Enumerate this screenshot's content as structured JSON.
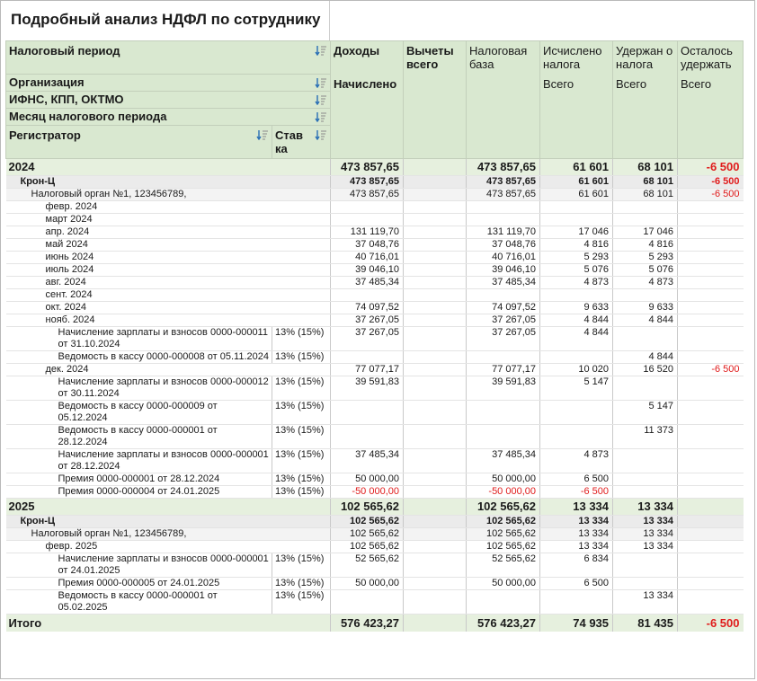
{
  "report": {
    "title": "Подробный анализ НДФЛ по сотруднику"
  },
  "header": {
    "dim1": "Налоговый период",
    "dim2": "Организация",
    "dim3": "ИФНС, КПП, ОКТМО",
    "dim4": "Месяц налогового периода",
    "dim5": "Регистратор",
    "dim6": "Став ка",
    "col_income": "Доходы",
    "col_income_sub": "Начислено",
    "col_deductions": "Вычеты всего",
    "col_taxbase": "Налоговая база",
    "col_calc": "Исчислено налога",
    "col_calc_sub": "Всего",
    "col_withheld": "Удержан о налога",
    "col_withheld_sub": "Всего",
    "col_remaining": "Осталось удержать",
    "col_remaining_sub": "Всего"
  },
  "rows": [
    {
      "level": 0,
      "label": "2024",
      "rate": "",
      "income": "473 857,65",
      "deductions": "",
      "base": "473 857,65",
      "calc": "61 601",
      "withheld": "68 101",
      "remaining": "-6 500"
    },
    {
      "level": 1,
      "label": "Крон-Ц",
      "rate": "",
      "income": "473 857,65",
      "deductions": "",
      "base": "473 857,65",
      "calc": "61 601",
      "withheld": "68 101",
      "remaining": "-6 500"
    },
    {
      "level": 2,
      "label": "Налоговый орган №1, 123456789,",
      "rate": "",
      "income": "473 857,65",
      "deductions": "",
      "base": "473 857,65",
      "calc": "61 601",
      "withheld": "68 101",
      "remaining": "-6 500"
    },
    {
      "level": 3,
      "label": "февр. 2024",
      "rate": "",
      "income": "",
      "deductions": "",
      "base": "",
      "calc": "",
      "withheld": "",
      "remaining": ""
    },
    {
      "level": 3,
      "label": "март 2024",
      "rate": "",
      "income": "",
      "deductions": "",
      "base": "",
      "calc": "",
      "withheld": "",
      "remaining": ""
    },
    {
      "level": 3,
      "label": "апр. 2024",
      "rate": "",
      "income": "131 119,70",
      "deductions": "",
      "base": "131 119,70",
      "calc": "17 046",
      "withheld": "17 046",
      "remaining": ""
    },
    {
      "level": 3,
      "label": "май 2024",
      "rate": "",
      "income": "37 048,76",
      "deductions": "",
      "base": "37 048,76",
      "calc": "4 816",
      "withheld": "4 816",
      "remaining": ""
    },
    {
      "level": 3,
      "label": "июнь 2024",
      "rate": "",
      "income": "40 716,01",
      "deductions": "",
      "base": "40 716,01",
      "calc": "5 293",
      "withheld": "5 293",
      "remaining": ""
    },
    {
      "level": 3,
      "label": "июль 2024",
      "rate": "",
      "income": "39 046,10",
      "deductions": "",
      "base": "39 046,10",
      "calc": "5 076",
      "withheld": "5 076",
      "remaining": ""
    },
    {
      "level": 3,
      "label": "авг. 2024",
      "rate": "",
      "income": "37 485,34",
      "deductions": "",
      "base": "37 485,34",
      "calc": "4 873",
      "withheld": "4 873",
      "remaining": ""
    },
    {
      "level": 3,
      "label": "сент. 2024",
      "rate": "",
      "income": "",
      "deductions": "",
      "base": "",
      "calc": "",
      "withheld": "",
      "remaining": ""
    },
    {
      "level": 3,
      "label": "окт. 2024",
      "rate": "",
      "income": "74 097,52",
      "deductions": "",
      "base": "74 097,52",
      "calc": "9 633",
      "withheld": "9 633",
      "remaining": ""
    },
    {
      "level": 3,
      "label": "нояб. 2024",
      "rate": "",
      "income": "37 267,05",
      "deductions": "",
      "base": "37 267,05",
      "calc": "4 844",
      "withheld": "4 844",
      "remaining": ""
    },
    {
      "level": 4,
      "label": "Начисление зарплаты и взносов 0000-000011 от 31.10.2024",
      "rate": "13% (15%)",
      "income": "37 267,05",
      "deductions": "",
      "base": "37 267,05",
      "calc": "4 844",
      "withheld": "",
      "remaining": ""
    },
    {
      "level": 4,
      "label": "Ведомость в кассу 0000-000008 от 05.11.2024",
      "rate": "13% (15%)",
      "income": "",
      "deductions": "",
      "base": "",
      "calc": "",
      "withheld": "4 844",
      "remaining": ""
    },
    {
      "level": 3,
      "label": "дек. 2024",
      "rate": "",
      "income": "77 077,17",
      "deductions": "",
      "base": "77 077,17",
      "calc": "10 020",
      "withheld": "16 520",
      "remaining": "-6 500"
    },
    {
      "level": 4,
      "label": "Начисление зарплаты и взносов 0000-000012 от 30.11.2024",
      "rate": "13% (15%)",
      "income": "39 591,83",
      "deductions": "",
      "base": "39 591,83",
      "calc": "5 147",
      "withheld": "",
      "remaining": ""
    },
    {
      "level": 4,
      "label": "Ведомость в кассу 0000-000009 от 05.12.2024",
      "rate": "13% (15%)",
      "income": "",
      "deductions": "",
      "base": "",
      "calc": "",
      "withheld": "5 147",
      "remaining": ""
    },
    {
      "level": 4,
      "label": "Ведомость в кассу 0000-000001 от 28.12.2024",
      "rate": "13% (15%)",
      "income": "",
      "deductions": "",
      "base": "",
      "calc": "",
      "withheld": "11 373",
      "remaining": ""
    },
    {
      "level": 4,
      "label": "Начисление зарплаты и взносов 0000-000001 от 28.12.2024",
      "rate": "13% (15%)",
      "income": "37 485,34",
      "deductions": "",
      "base": "37 485,34",
      "calc": "4 873",
      "withheld": "",
      "remaining": ""
    },
    {
      "level": 4,
      "label": "Премия 0000-000001 от 28.12.2024",
      "rate": "13% (15%)",
      "income": "50 000,00",
      "deductions": "",
      "base": "50 000,00",
      "calc": "6 500",
      "withheld": "",
      "remaining": ""
    },
    {
      "level": 4,
      "label": "Премия 0000-000004 от 24.01.2025",
      "rate": "13% (15%)",
      "income": "-50 000,00",
      "deductions": "",
      "base": "-50 000,00",
      "calc": "-6 500",
      "withheld": "",
      "remaining": ""
    },
    {
      "level": 0,
      "label": "2025",
      "rate": "",
      "income": "102 565,62",
      "deductions": "",
      "base": "102 565,62",
      "calc": "13 334",
      "withheld": "13 334",
      "remaining": ""
    },
    {
      "level": 1,
      "label": "Крон-Ц",
      "rate": "",
      "income": "102 565,62",
      "deductions": "",
      "base": "102 565,62",
      "calc": "13 334",
      "withheld": "13 334",
      "remaining": ""
    },
    {
      "level": 2,
      "label": "Налоговый орган №1, 123456789,",
      "rate": "",
      "income": "102 565,62",
      "deductions": "",
      "base": "102 565,62",
      "calc": "13 334",
      "withheld": "13 334",
      "remaining": ""
    },
    {
      "level": 3,
      "label": "февр. 2025",
      "rate": "",
      "income": "102 565,62",
      "deductions": "",
      "base": "102 565,62",
      "calc": "13 334",
      "withheld": "13 334",
      "remaining": ""
    },
    {
      "level": 4,
      "label": "Начисление зарплаты и взносов 0000-000001 от 24.01.2025",
      "rate": "13% (15%)",
      "income": "52 565,62",
      "deductions": "",
      "base": "52 565,62",
      "calc": "6 834",
      "withheld": "",
      "remaining": ""
    },
    {
      "level": 4,
      "label": "Премия 0000-000005 от 24.01.2025",
      "rate": "13% (15%)",
      "income": "50 000,00",
      "deductions": "",
      "base": "50 000,00",
      "calc": "6 500",
      "withheld": "",
      "remaining": ""
    },
    {
      "level": 4,
      "label": "Ведомость в кассу 0000-000001 от 05.02.2025",
      "rate": "13% (15%)",
      "income": "",
      "deductions": "",
      "base": "",
      "calc": "",
      "withheld": "13 334",
      "remaining": ""
    }
  ],
  "total": {
    "label": "Итого",
    "income": "576 423,27",
    "deductions": "",
    "base": "576 423,27",
    "calc": "74 935",
    "withheld": "81 435",
    "remaining": "-6 500"
  },
  "colors": {
    "header_bg": "#d9e8d0",
    "group_bg": "#e6f0de",
    "negative": "#e01b1b",
    "sort_icon": "#2a6fb5"
  },
  "icons": {
    "sort": "sort-ascending-icon"
  }
}
